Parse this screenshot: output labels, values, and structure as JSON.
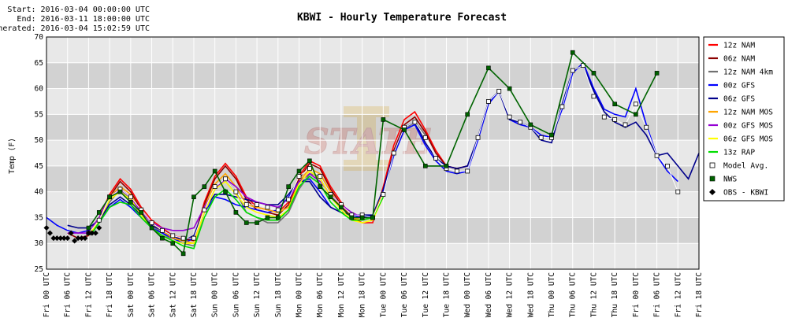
{
  "header": {
    "start": "Start: 2016-03-04 00:00:00 UTC",
    "end": "End: 2016-03-11 18:00:00 UTC",
    "generated": "Generated: 2016-03-04 15:02:59 UTC"
  },
  "chart_data": {
    "type": "line",
    "title": "KBWI - Hourly Temperature Forecast",
    "ylabel": "Temp (F)",
    "xlabel": "",
    "ylim": [
      25,
      70
    ],
    "yticks": [
      25,
      30,
      35,
      40,
      45,
      50,
      55,
      60,
      65,
      70
    ],
    "x_unit": "hours from 2016-03-04 00 UTC",
    "xlim": [
      0,
      186
    ],
    "xtick_labels": [
      "Fri 00 UTC",
      "Fri 06 UTC",
      "Fri 12 UTC",
      "Fri 18 UTC",
      "Sat 00 UTC",
      "Sat 06 UTC",
      "Sat 12 UTC",
      "Sat 18 UTC",
      "Sun 00 UTC",
      "Sun 06 UTC",
      "Sun 12 UTC",
      "Sun 18 UTC",
      "Mon 00 UTC",
      "Mon 06 UTC",
      "Mon 12 UTC",
      "Mon 18 UTC",
      "Tue 00 UTC",
      "Tue 06 UTC",
      "Tue 12 UTC",
      "Tue 18 UTC",
      "Wed 00 UTC",
      "Wed 06 UTC",
      "Wed 12 UTC",
      "Wed 18 UTC",
      "Thu 00 UTC",
      "Thu 06 UTC",
      "Thu 12 UTC",
      "Thu 18 UTC",
      "Fri 00 UTC",
      "Fri 06 UTC",
      "Fri 12 UTC",
      "Fri 18 UTC"
    ],
    "grid": true,
    "legend_position": "right",
    "series": [
      {
        "name": "12z NAM",
        "color": "#ff0000",
        "style": "line",
        "x": [
          12,
          15,
          18,
          21,
          24,
          27,
          30,
          33,
          36,
          39,
          42,
          45,
          48,
          51,
          54,
          57,
          60,
          63,
          66,
          69,
          72,
          75,
          78,
          81,
          84,
          87,
          90,
          93,
          96,
          99,
          102,
          105,
          108,
          111,
          114,
          117,
          120
        ],
        "y": [
          32,
          35,
          39.5,
          42.5,
          40.5,
          37,
          34.5,
          33,
          31.5,
          31,
          30.5,
          38,
          43,
          45.5,
          43,
          39,
          37,
          36.5,
          36,
          38,
          43,
          46,
          45,
          41,
          38,
          35,
          34,
          34,
          41,
          49,
          54,
          55.5,
          52,
          48,
          45,
          44.5,
          45
        ]
      },
      {
        "name": "06z NAM",
        "color": "#8b0000",
        "style": "line",
        "x": [
          6,
          9,
          12,
          15,
          18,
          21,
          24,
          27,
          30,
          33,
          36,
          39,
          42,
          45,
          48,
          51,
          54,
          57,
          60,
          63,
          66,
          69,
          72,
          75,
          78,
          81,
          84,
          87,
          90,
          93,
          96,
          99,
          102,
          105,
          108,
          111,
          114,
          117,
          120
        ],
        "y": [
          32,
          31,
          31.5,
          35,
          39,
          42,
          40,
          36.5,
          34,
          32.5,
          31,
          30.5,
          31,
          37.5,
          42.5,
          45,
          42.5,
          38.5,
          36.5,
          36,
          35.5,
          37.5,
          42.5,
          45.5,
          44.5,
          40.5,
          37.5,
          35,
          34.5,
          35,
          40,
          48,
          53,
          54.5,
          51.5,
          47.5,
          45,
          44.5,
          45
        ]
      },
      {
        "name": "12z NAM 4km",
        "color": "#707070",
        "style": "line",
        "x": [
          12,
          15,
          18,
          21,
          24,
          27,
          30,
          33,
          36,
          39,
          42,
          45,
          48,
          51,
          54,
          57,
          60,
          63,
          66,
          69,
          72,
          75,
          78,
          81,
          84,
          87,
          90,
          93,
          96,
          99,
          102,
          105,
          108
        ],
        "y": [
          31.5,
          34,
          38,
          40.5,
          38.5,
          35.5,
          33.5,
          32,
          30.5,
          30,
          29.5,
          36,
          40.5,
          42.5,
          40,
          36,
          35,
          34,
          34,
          36,
          40.5,
          43.5,
          43,
          39.5,
          37,
          35,
          34.5,
          35,
          40,
          47.5,
          52,
          53.5,
          51
        ]
      },
      {
        "name": "00z GFS",
        "color": "#0000ff",
        "style": "line",
        "x": [
          0,
          3,
          6,
          9,
          12,
          15,
          18,
          21,
          24,
          27,
          30,
          33,
          36,
          39,
          42,
          45,
          48,
          51,
          54,
          57,
          60,
          63,
          66,
          69,
          72,
          75,
          78,
          81,
          84,
          87,
          90,
          93,
          96,
          99,
          102,
          105,
          108,
          111,
          114,
          117,
          120,
          123,
          126,
          129,
          132,
          135,
          138,
          141,
          144,
          147,
          150,
          153,
          156,
          159,
          162,
          165,
          168,
          171,
          174,
          177,
          180
        ],
        "y": [
          35,
          33.5,
          32.5,
          32,
          32.5,
          34,
          37,
          38.5,
          37,
          35,
          33,
          32,
          31,
          30,
          31,
          36,
          39,
          38.5,
          37.5,
          37,
          36.5,
          36,
          36.5,
          39,
          42,
          42.5,
          40,
          37,
          36,
          35.5,
          35,
          35.5,
          40,
          47,
          52,
          53,
          49,
          46,
          44,
          43.5,
          44,
          50,
          57,
          59.5,
          54,
          53,
          52.5,
          51,
          50.5,
          56,
          63,
          65,
          60,
          56,
          55,
          54.5,
          60,
          53,
          47,
          44,
          42
        ]
      },
      {
        "name": "06z GFS",
        "color": "#00008b",
        "style": "line",
        "x": [
          6,
          9,
          12,
          15,
          18,
          21,
          24,
          27,
          30,
          33,
          36,
          39,
          42,
          45,
          48,
          51,
          54,
          57,
          60,
          63,
          66,
          69,
          72,
          75,
          78,
          81,
          84,
          87,
          90,
          93,
          96,
          99,
          102,
          105,
          108,
          111,
          114,
          117,
          120,
          123,
          126,
          129,
          132,
          135,
          138,
          141,
          144,
          147,
          150,
          153,
          156,
          159,
          162,
          165,
          168,
          171,
          174,
          177,
          180,
          183,
          186
        ],
        "y": [
          33.5,
          33,
          33,
          34.5,
          37.5,
          39,
          37.5,
          35.5,
          33.5,
          32.5,
          31.5,
          30.5,
          31.5,
          36.5,
          39.5,
          39.5,
          39,
          38.5,
          38,
          37.5,
          37.5,
          39.5,
          42,
          42,
          39,
          37,
          36,
          35.5,
          35.5,
          35.5,
          40.5,
          47.5,
          52.5,
          53.5,
          49.5,
          46.5,
          45,
          44.5,
          45,
          50.5,
          57.5,
          59.5,
          54,
          53.5,
          52.5,
          50,
          49.5,
          57,
          63.5,
          64.5,
          59.5,
          55.5,
          53.5,
          52.5,
          53.5,
          51,
          47,
          47.5,
          45,
          42.5,
          47.5
        ]
      },
      {
        "name": "12z NAM MOS",
        "color": "#ffa500",
        "style": "line",
        "x": [
          12,
          15,
          18,
          21,
          24,
          27,
          30,
          33,
          36,
          39,
          42,
          45,
          48,
          51,
          54,
          57,
          60,
          63,
          66,
          69,
          72,
          75,
          78,
          81,
          84,
          87,
          90,
          93,
          96
        ],
        "y": [
          31.5,
          35,
          39,
          41,
          39.5,
          36,
          34,
          32.5,
          31,
          30.5,
          30,
          37,
          41.5,
          43.5,
          41,
          37.5,
          37,
          36.5,
          36,
          37,
          42,
          44.5,
          43.5,
          40,
          37,
          35,
          34.5,
          35,
          40
        ]
      },
      {
        "name": "00z GFS MOS",
        "color": "#9400d3",
        "style": "line",
        "x": [
          6,
          9,
          12,
          15,
          18,
          21,
          24,
          27,
          30,
          33,
          36,
          39,
          42,
          45,
          48,
          51,
          54,
          57,
          60,
          63,
          66,
          69,
          72,
          75,
          78,
          81,
          84,
          87,
          90,
          93,
          96
        ],
        "y": [
          32,
          32,
          32,
          35,
          39,
          40.5,
          39,
          36,
          34,
          33,
          32.5,
          32.5,
          33,
          37,
          40.5,
          42.5,
          41,
          39,
          38,
          37.5,
          37,
          38.5,
          42,
          43.5,
          42,
          39.5,
          37.5,
          36,
          35,
          35,
          39
        ]
      },
      {
        "name": "06z GFS MOS",
        "color": "#ffff00",
        "style": "line",
        "x": [
          12,
          15,
          18,
          21,
          24,
          27,
          30,
          33,
          36,
          39,
          42,
          45,
          48,
          51,
          54,
          57,
          60,
          63,
          66,
          69,
          72,
          75,
          78,
          81,
          84,
          87,
          90,
          93,
          96
        ],
        "y": [
          31.5,
          34.5,
          38.5,
          40,
          38.5,
          35.5,
          33,
          31.5,
          30.5,
          30,
          30,
          36,
          40.5,
          42,
          39.5,
          37,
          36,
          35.5,
          35,
          36.5,
          41.5,
          44,
          42.5,
          39,
          36.5,
          34.5,
          34,
          34.5,
          39
        ]
      },
      {
        "name": "13z RAP",
        "color": "#00dd00",
        "style": "line",
        "x": [
          13,
          15,
          18,
          21,
          24,
          27,
          30,
          33,
          36,
          39,
          42,
          45,
          48,
          51,
          54,
          57,
          60,
          63,
          66,
          69,
          72,
          75,
          78,
          81,
          84,
          87,
          90,
          93,
          96
        ],
        "y": [
          32,
          34,
          37,
          38,
          37.5,
          35,
          33,
          31.5,
          30.5,
          29.5,
          29,
          35,
          39,
          40.5,
          38.5,
          36,
          35,
          34.5,
          34.5,
          36.5,
          41,
          43,
          41.5,
          38,
          36,
          34.5,
          34.5,
          35,
          39
        ]
      },
      {
        "name": "Model Avg.",
        "color": "#000000",
        "style": "square",
        "x": [
          12,
          15,
          18,
          21,
          24,
          27,
          30,
          33,
          36,
          39,
          42,
          45,
          48,
          51,
          54,
          57,
          60,
          63,
          66,
          69,
          72,
          75,
          78,
          81,
          84,
          87,
          90,
          93,
          96,
          99,
          102,
          105,
          108,
          111,
          114,
          117,
          120,
          123,
          126,
          129,
          132,
          135,
          138,
          141,
          144,
          147,
          150,
          153,
          156,
          159,
          162,
          165,
          168,
          171,
          174,
          177,
          180
        ],
        "y": [
          32,
          34.5,
          39,
          40.5,
          39,
          36.5,
          34,
          32.5,
          31.5,
          31,
          31,
          36.5,
          41,
          42.5,
          40,
          37.5,
          37.5,
          37,
          36.5,
          38.5,
          43,
          44.5,
          43,
          39.5,
          37.5,
          35.5,
          35.5,
          35,
          39.5,
          47.5,
          52.5,
          53.5,
          50.5,
          46.5,
          44.5,
          44,
          44,
          50.5,
          57.5,
          59.5,
          54.5,
          53.5,
          52.5,
          50.5,
          50.5,
          56.5,
          63.5,
          64.5,
          58.5,
          54.5,
          54,
          53,
          57,
          52.5,
          47,
          45,
          40
        ]
      },
      {
        "name": "NWS",
        "color": "#006400",
        "style": "square-line",
        "x": [
          12,
          15,
          18,
          21,
          24,
          27,
          30,
          33,
          36,
          39,
          42,
          45,
          48,
          51,
          54,
          57,
          60,
          63,
          66,
          69,
          72,
          75,
          78,
          81,
          84,
          87,
          90,
          93,
          96,
          102,
          108,
          114,
          120,
          126,
          132,
          138,
          144,
          150,
          156,
          162,
          168,
          174
        ],
        "y": [
          33,
          36,
          39,
          40,
          38,
          36,
          33,
          31,
          30,
          28,
          39,
          41,
          44,
          40,
          36,
          34,
          34,
          35,
          35,
          41,
          44,
          46,
          41,
          39,
          37,
          35,
          35,
          35,
          54,
          52,
          45,
          45,
          55,
          64,
          60,
          53,
          51,
          67,
          63,
          57,
          55,
          63
        ]
      },
      {
        "name": "OBS - KBWI",
        "color": "#000000",
        "style": "diamond",
        "x": [
          0,
          1,
          2,
          3,
          4,
          5,
          6,
          7,
          8,
          9,
          10,
          11,
          12,
          13,
          14,
          15
        ],
        "y": [
          33,
          32,
          31,
          31,
          31,
          31,
          31,
          32,
          30.5,
          31,
          31,
          31,
          32,
          32,
          32,
          33
        ]
      }
    ]
  }
}
